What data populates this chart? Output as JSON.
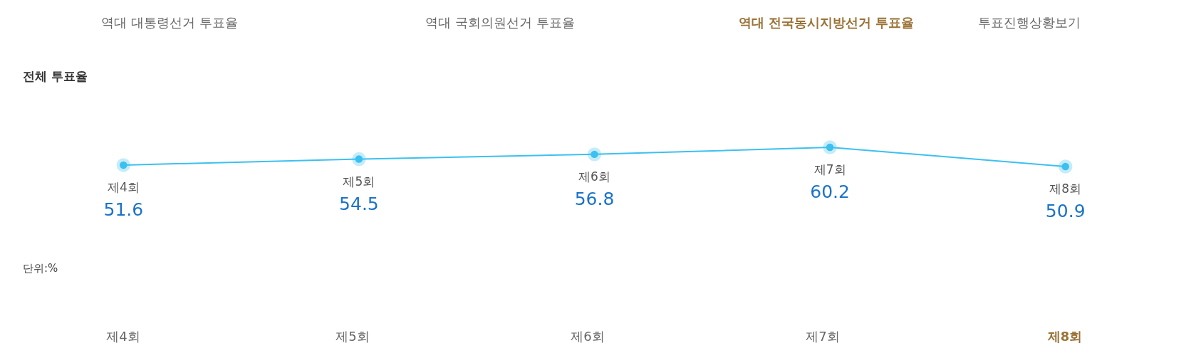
{
  "chart_data": {
    "type": "line",
    "title": "전체 투표율",
    "categories": [
      "제4회",
      "제5회",
      "제6회",
      "제7회",
      "제8회"
    ],
    "series": [
      {
        "color": "#3cc0f0",
        "values": [
          51.6,
          54.5,
          56.8,
          60.2,
          50.9
        ]
      }
    ],
    "marker": "circle",
    "line_style": "solid",
    "data_labels": true,
    "annotations": [
      "역대 대통령선거 투표율",
      "역대 국회의원선거 투표율",
      "역대 전국동시지방선거 투표율",
      "투표진행상황보기",
      "단위:%",
      "제4회",
      "제5회",
      "제6회",
      "제7회",
      "제8회"
    ]
  }
}
